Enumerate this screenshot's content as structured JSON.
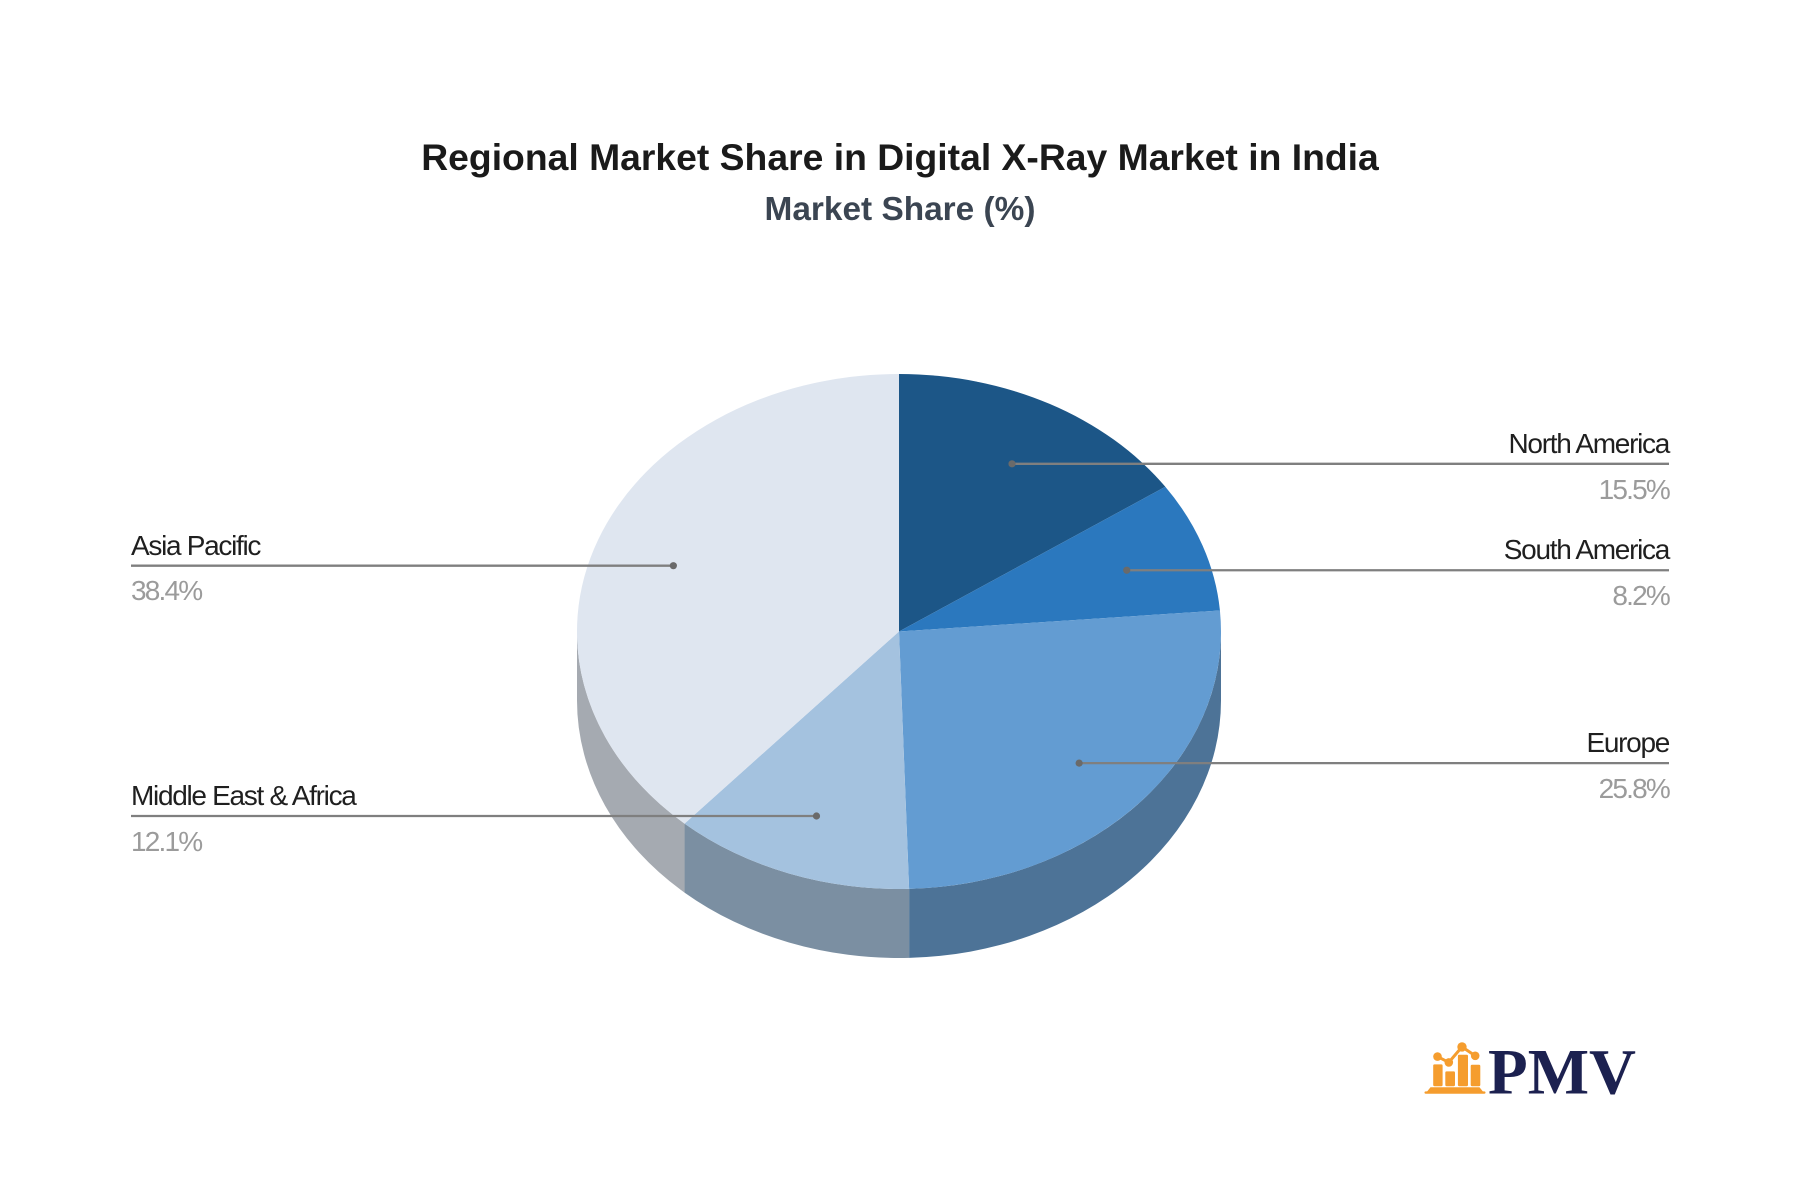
{
  "chart_data": {
    "type": "pie",
    "variant": "pie-3d",
    "title": "Regional Market Share in Digital X-Ray Market in India",
    "subtitle": "Market Share (%)",
    "unit": "%",
    "start_angle_deg": 0,
    "direction": "clockwise",
    "legend": "none",
    "labels": "outside-leader-lines",
    "slices": [
      {
        "name": "North America",
        "value": 15.5,
        "label": "15.5%",
        "color": "#1C5687"
      },
      {
        "name": "South America",
        "value": 8.2,
        "label": "8.2%",
        "color": "#2B78BE"
      },
      {
        "name": "Europe",
        "value": 25.8,
        "label": "25.8%",
        "color": "#639CD2"
      },
      {
        "name": "Middle East & Africa",
        "value": 12.1,
        "label": "12.1%",
        "color": "#A4C2DF"
      },
      {
        "name": "Asia Pacific",
        "value": 38.4,
        "label": "38.4%",
        "color": "#DFE6F0"
      }
    ],
    "style": {
      "title_color": "#1A1A1A",
      "subtitle_color": "#3B4552",
      "label_name_color": "#1F1F1F",
      "label_value_color": "#9B9B9B",
      "leader_line_color": "#7F7F7F",
      "leader_dot_color": "#6A6A6A",
      "background_color": "#FFFFFF"
    }
  },
  "logo": {
    "text": "PMV",
    "icon": "bar-chart-logo-icon",
    "icon_color": "#F59D2E",
    "text_color": "#1C2150"
  }
}
